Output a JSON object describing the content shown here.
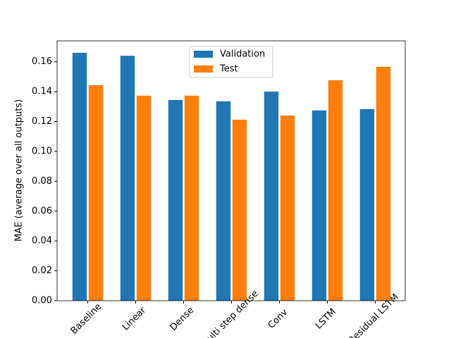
{
  "chart_data": {
    "type": "bar",
    "ylabel": "MAE (average over all outputs)",
    "categories": [
      "Baseline",
      "Linear",
      "Dense",
      "Multi step dense",
      "Conv",
      "LSTM",
      "Residual LSTM"
    ],
    "series": [
      {
        "name": "Validation",
        "color": "#1f77b4",
        "values": [
          0.166,
          0.164,
          0.1344,
          0.1335,
          0.14,
          0.1274,
          0.1283
        ]
      },
      {
        "name": "Test",
        "color": "#ff7f0e",
        "values": [
          0.1443,
          0.1373,
          0.1373,
          0.1212,
          0.124,
          0.1476,
          0.1566
        ]
      }
    ],
    "ylim": [
      0,
      0.174
    ],
    "yticks": [
      {
        "value": 0,
        "label": "0.00"
      },
      {
        "value": 0.02,
        "label": "0.02"
      },
      {
        "value": 0.04,
        "label": "0.04"
      },
      {
        "value": 0.06,
        "label": "0.06"
      },
      {
        "value": 0.08,
        "label": "0.08"
      },
      {
        "value": 0.1,
        "label": "0.10"
      },
      {
        "value": 0.12,
        "label": "0.12"
      },
      {
        "value": 0.14,
        "label": "0.14"
      },
      {
        "value": 0.16,
        "label": "0.16"
      }
    ],
    "legend": "upper center"
  }
}
